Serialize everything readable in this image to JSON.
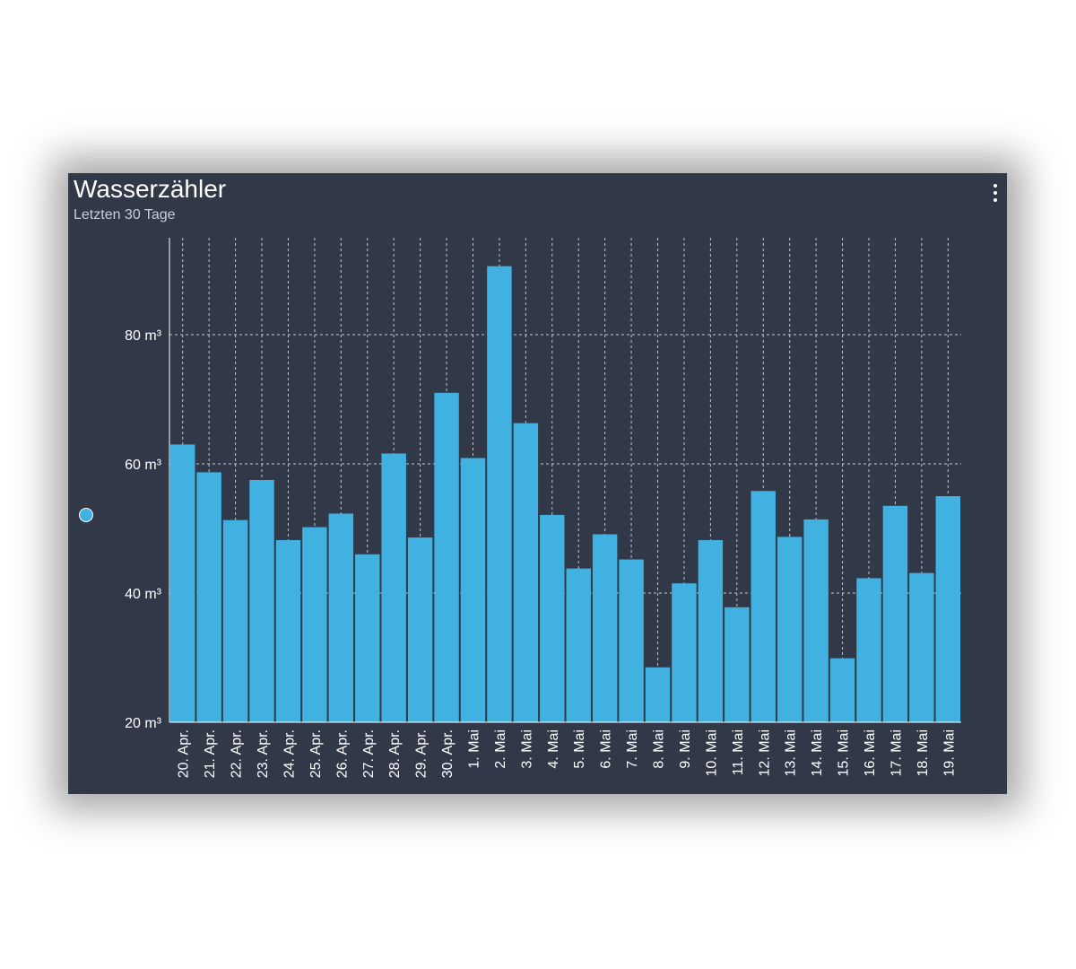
{
  "card": {
    "title": "Wasserzähler",
    "subtitle": "Letzten 30 Tage",
    "menu_icon": "more-vertical-icon"
  },
  "colors": {
    "background": "#313848",
    "bar": "#41b1e1",
    "grid": "#d9dde3",
    "text": "#ffffff"
  },
  "chart_data": {
    "type": "bar",
    "title": "",
    "xlabel": "",
    "ylabel": "",
    "unit": "m³",
    "ylim": [
      20,
      95
    ],
    "yticks": [
      20,
      40,
      60,
      80
    ],
    "ytick_labels": [
      "20 m³",
      "40 m³",
      "60 m³",
      "80 m³"
    ],
    "grid": true,
    "legend": "left",
    "categories": [
      "20. Apr.",
      "21. Apr.",
      "22. Apr.",
      "23. Apr.",
      "24. Apr.",
      "25. Apr.",
      "26. Apr.",
      "27. Apr.",
      "28. Apr.",
      "29. Apr.",
      "30. Apr.",
      "1. Mai",
      "2. Mai",
      "3. Mai",
      "4. Mai",
      "5. Mai",
      "6. Mai",
      "7. Mai",
      "8. Mai",
      "9. Mai",
      "10. Mai",
      "11. Mai",
      "12. Mai",
      "13. Mai",
      "14. Mai",
      "15. Mai",
      "16. Mai",
      "17. Mai",
      "18. Mai",
      "19. Mai"
    ],
    "series": [
      {
        "color": "#41b1e1",
        "values": [
          63.0,
          58.7,
          51.3,
          57.5,
          48.2,
          50.2,
          52.3,
          46.0,
          61.6,
          48.6,
          71.0,
          60.9,
          90.6,
          66.3,
          52.1,
          43.8,
          49.1,
          45.2,
          28.5,
          41.5,
          48.2,
          37.8,
          55.8,
          48.7,
          51.4,
          29.9,
          42.3,
          53.5,
          43.1,
          55.0
        ]
      }
    ]
  }
}
